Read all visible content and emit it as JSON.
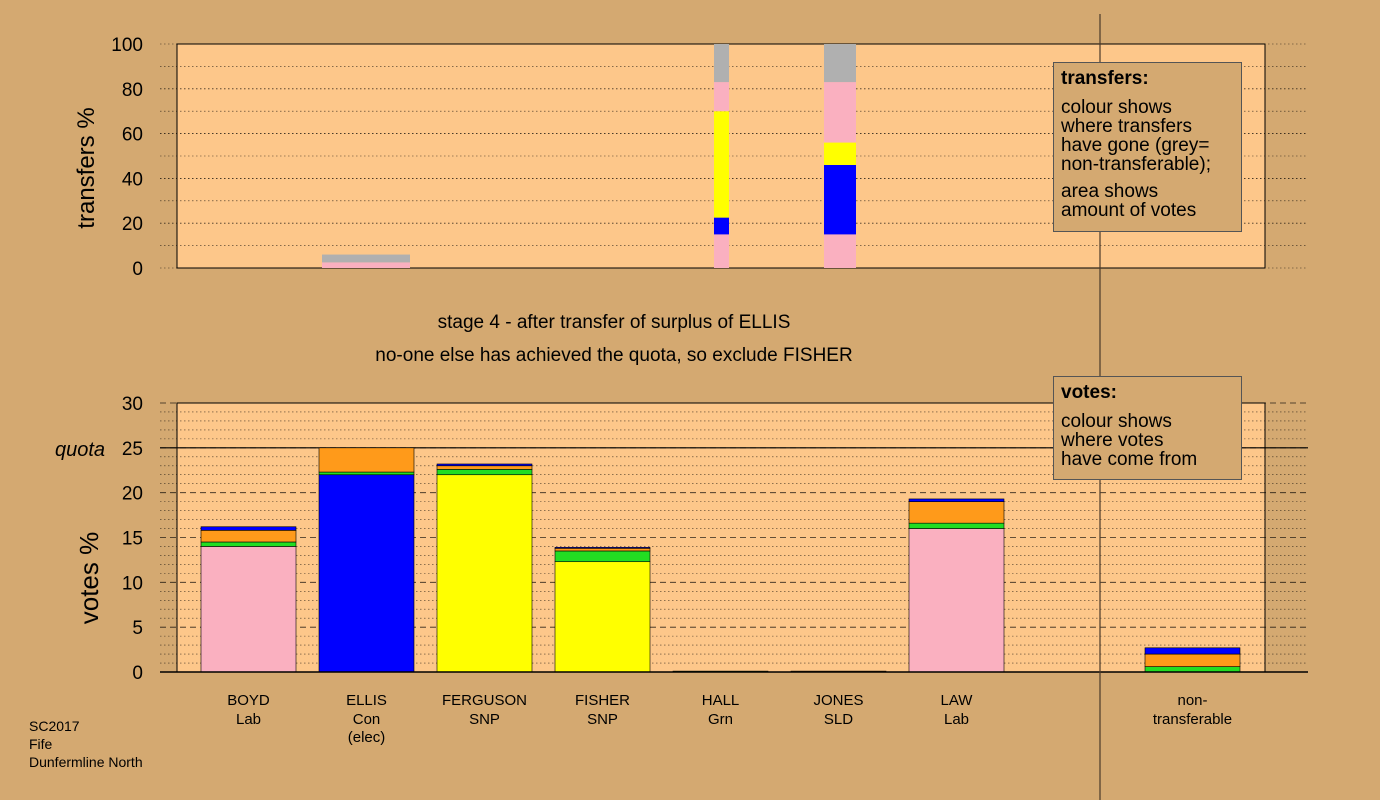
{
  "colors": {
    "page_bg": "#D4A971",
    "plot_bg": "#FDC78A",
    "Lab": "#FAB0C0",
    "Con": "#0000FF",
    "SNP": "#FFFF00",
    "Grn": "#22DD22",
    "SLD": "#FF9A1A",
    "nontransferable": "#B0B0B0"
  },
  "captions": {
    "stage": "stage 4 - after transfer of surplus of ELLIS",
    "action": "no-one else has achieved the quota, so exclude FISHER"
  },
  "legend_transfers": {
    "title": "transfers:",
    "lines_a": [
      "colour shows",
      "where transfers",
      "have gone (grey=",
      "non-transferable);"
    ],
    "lines_b": [
      "area shows",
      "amount of votes"
    ]
  },
  "legend_votes": {
    "title": "votes:",
    "lines": [
      "colour shows",
      "where votes",
      "have come from"
    ]
  },
  "footer": [
    "SC2017",
    "Fife",
    "Dunfermline North"
  ],
  "chart_data": [
    {
      "type": "bar",
      "ylabel": "transfers %",
      "ylim": [
        0,
        100
      ],
      "yticks": [
        0,
        20,
        40,
        60,
        80,
        100
      ],
      "grid": true,
      "bars": [
        {
          "candidate": "ELLIS",
          "segments": [
            {
              "party": "Lab",
              "from": 0,
              "to": 2.5
            },
            {
              "party": "nontransferable",
              "from": 2.5,
              "to": 6
            }
          ]
        },
        {
          "candidate": "HALL",
          "segments": [
            {
              "party": "Lab",
              "from": 0,
              "to": 15
            },
            {
              "party": "Con",
              "from": 15,
              "to": 22.5
            },
            {
              "party": "SNP",
              "from": 22.5,
              "to": 70
            },
            {
              "party": "Lab",
              "from": 70,
              "to": 83
            },
            {
              "party": "nontransferable",
              "from": 83,
              "to": 100
            }
          ]
        },
        {
          "candidate": "JONES",
          "segments": [
            {
              "party": "Lab",
              "from": 0,
              "to": 15
            },
            {
              "party": "Con",
              "from": 15,
              "to": 46
            },
            {
              "party": "SNP",
              "from": 46,
              "to": 56
            },
            {
              "party": "Lab",
              "from": 56,
              "to": 83
            },
            {
              "party": "nontransferable",
              "from": 83,
              "to": 100
            }
          ]
        }
      ]
    },
    {
      "type": "bar",
      "ylabel": "votes %",
      "ylim": [
        0,
        30
      ],
      "yticks": [
        0,
        5,
        10,
        15,
        20,
        25,
        30
      ],
      "quota": 25,
      "quota_label": "quota",
      "grid": true,
      "categories": [
        {
          "name": "BOYD",
          "party": "Lab",
          "extra": ""
        },
        {
          "name": "ELLIS",
          "party": "Con",
          "extra": "(elec)"
        },
        {
          "name": "FERGUSON",
          "party": "SNP",
          "extra": ""
        },
        {
          "name": "FISHER",
          "party": "SNP",
          "extra": ""
        },
        {
          "name": "HALL",
          "party": "Grn",
          "extra": ""
        },
        {
          "name": "JONES",
          "party": "SLD",
          "extra": ""
        },
        {
          "name": "LAW",
          "party": "Lab",
          "extra": ""
        },
        {
          "name": "",
          "party": "",
          "extra": ""
        },
        {
          "name": "non-",
          "party": "transferable",
          "extra": ""
        }
      ],
      "stacks": [
        [
          {
            "party": "Lab",
            "value": 14.0
          },
          {
            "party": "Grn",
            "value": 0.5
          },
          {
            "party": "SLD",
            "value": 1.3
          },
          {
            "party": "Con",
            "value": 0.4
          }
        ],
        [
          {
            "party": "Con",
            "value": 22.0
          },
          {
            "party": "Grn",
            "value": 0.3
          },
          {
            "party": "SLD",
            "value": 2.7
          }
        ],
        [
          {
            "party": "SNP",
            "value": 22.0
          },
          {
            "party": "Grn",
            "value": 0.6
          },
          {
            "party": "SLD",
            "value": 0.4
          },
          {
            "party": "Con",
            "value": 0.2
          }
        ],
        [
          {
            "party": "SNP",
            "value": 12.3
          },
          {
            "party": "Grn",
            "value": 1.2
          },
          {
            "party": "SLD",
            "value": 0.3
          },
          {
            "party": "Con",
            "value": 0.1
          }
        ],
        [
          {
            "party": "Grn",
            "value": 0.1
          }
        ],
        [
          {
            "party": "SLD",
            "value": 0.1
          }
        ],
        [
          {
            "party": "Lab",
            "value": 16.0
          },
          {
            "party": "Grn",
            "value": 0.6
          },
          {
            "party": "SLD",
            "value": 2.4
          },
          {
            "party": "Con",
            "value": 0.3
          }
        ],
        [],
        [
          {
            "party": "Grn",
            "value": 0.6
          },
          {
            "party": "SLD",
            "value": 1.4
          },
          {
            "party": "Con",
            "value": 0.7
          }
        ]
      ]
    }
  ]
}
